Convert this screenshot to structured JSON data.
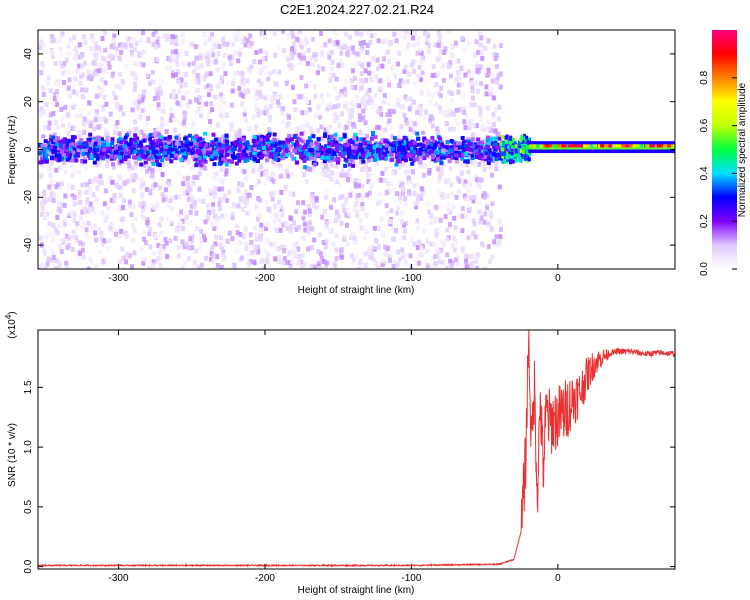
{
  "title": "C2E1.2024.227.02.21.R24",
  "chart_data": [
    {
      "type": "heatmap",
      "xlabel": "Height of straight line (km)",
      "ylabel": "Frequency (Hz)",
      "xlim": [
        -355,
        80
      ],
      "ylim": [
        -50,
        50
      ],
      "xticks": [
        -300,
        -200,
        -100,
        0
      ],
      "yticks": [
        -40,
        -20,
        0,
        20,
        40
      ],
      "colorbar": {
        "label": "Normalized spectral amplitude",
        "range": [
          0.0,
          1.0
        ],
        "ticks": [
          0.0,
          0.2,
          0.4,
          0.6,
          0.8
        ],
        "tick_labels": [
          "0.0",
          "0.2",
          "0.4",
          "0.6",
          "0.8"
        ],
        "colors": [
          "#ffffff",
          "#e0c8ff",
          "#8000ff",
          "#0000ff",
          "#00e0ff",
          "#00ff40",
          "#c0ff00",
          "#ffff00",
          "#ff8000",
          "#ff0000",
          "#ff0080"
        ]
      },
      "regions": [
        {
          "x": [
            -355,
            -40
          ],
          "spread_hz": [
            -50,
            50
          ],
          "core_hz": [
            -8,
            8
          ],
          "amplitude": [
            0.02,
            0.3
          ]
        },
        {
          "x": [
            -40,
            -20
          ],
          "core_hz": [
            -6,
            6
          ],
          "amplitude": [
            0.2,
            0.6
          ]
        },
        {
          "x": [
            -20,
            80
          ],
          "band_hz": [
            0,
            2
          ],
          "amplitude": [
            0.4,
            1.0
          ],
          "peak_hz": 1.5
        }
      ]
    },
    {
      "type": "line",
      "xlabel": "Height of straight line (km)",
      "ylabel": "SNR (10 * v/v)",
      "scale_label": "(x10",
      "scale_exp": "4",
      "scale_close": ")",
      "xlim": [
        -355,
        80
      ],
      "ylim": [
        -0.02,
        1.98
      ],
      "xticks": [
        -300,
        -200,
        -100,
        0
      ],
      "yticks": [
        0.0,
        0.5,
        1.0,
        1.5
      ],
      "ytick_labels": [
        "0.0",
        "0.5",
        "1.0",
        "1.5"
      ],
      "series": [
        {
          "color": "#e83030",
          "x": [
            -355,
            -300,
            -200,
            -100,
            -40,
            -30,
            -25,
            -22,
            -20,
            -18,
            -16,
            -14,
            -12,
            -10,
            -8,
            -5,
            0,
            5,
            10,
            15,
            20,
            25,
            30,
            35,
            40,
            50,
            60,
            70,
            80
          ],
          "values": [
            0.01,
            0.01,
            0.01,
            0.01,
            0.02,
            0.06,
            0.3,
            0.9,
            1.95,
            1.0,
            1.5,
            0.6,
            1.4,
            0.8,
            1.3,
            1.2,
            1.25,
            1.3,
            1.4,
            1.45,
            1.6,
            1.7,
            1.75,
            1.78,
            1.8,
            1.8,
            1.78,
            1.79,
            1.78
          ]
        }
      ]
    }
  ]
}
